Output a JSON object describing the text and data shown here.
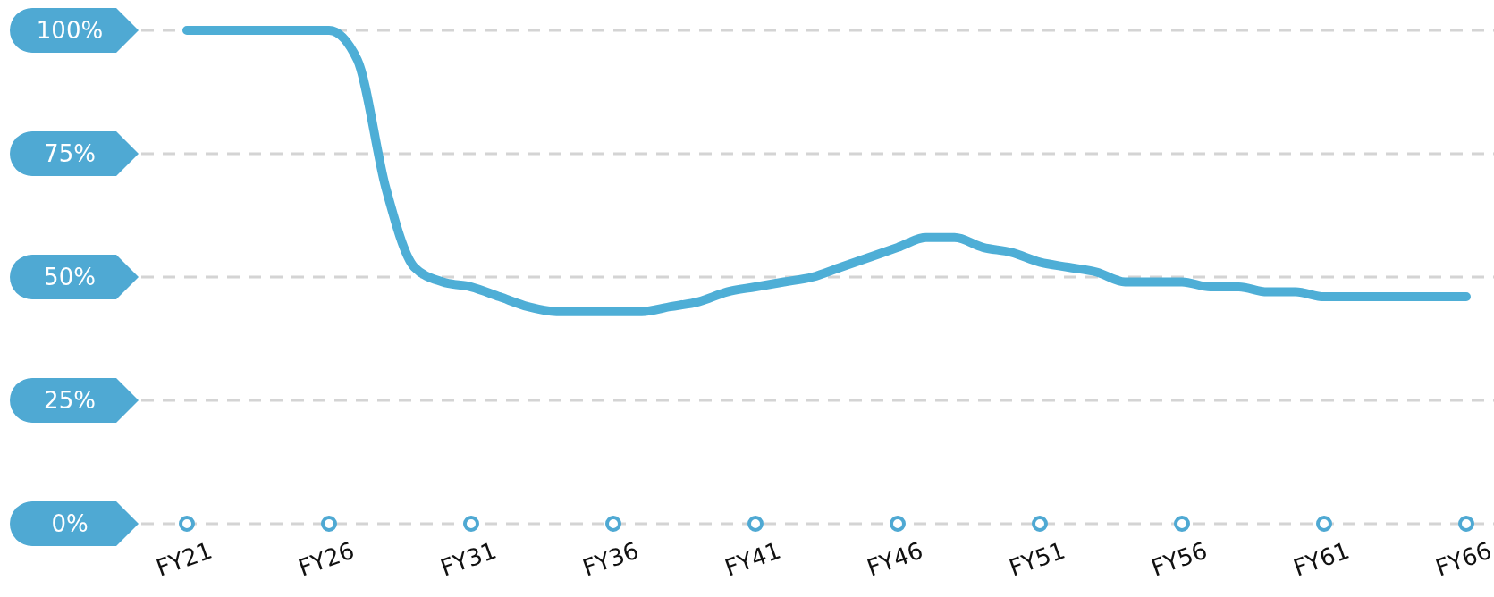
{
  "chart_data": {
    "type": "line",
    "categories": [
      "FY21",
      null,
      null,
      null,
      null,
      "FY26",
      null,
      null,
      null,
      null,
      "FY31",
      null,
      null,
      null,
      null,
      "FY36",
      null,
      null,
      null,
      null,
      "FY41",
      null,
      null,
      null,
      null,
      "FY46",
      null,
      null,
      null,
      null,
      "FY51",
      null,
      null,
      null,
      null,
      "FY56",
      null,
      null,
      null,
      null,
      "FY61",
      null,
      null,
      null,
      null,
      "FY66"
    ],
    "series": [
      {
        "color": "#4eaed6",
        "values": [
          100,
          100,
          100,
          100,
          100,
          100,
          94,
          68,
          52,
          49,
          48,
          46,
          44,
          43,
          43,
          43,
          43,
          44,
          45,
          47,
          48,
          49,
          50,
          52,
          54,
          56,
          58,
          58,
          56,
          55,
          53,
          52,
          51,
          49,
          49,
          49,
          48,
          48,
          47,
          47,
          46,
          46,
          46,
          46,
          46,
          46
        ]
      }
    ],
    "ylim": [
      0,
      100
    ],
    "yticks": [
      {
        "value": 0,
        "label": "0%"
      },
      {
        "value": 25,
        "label": "25%"
      },
      {
        "value": 50,
        "label": "50%"
      },
      {
        "value": 75,
        "label": "75%"
      },
      {
        "value": 100,
        "label": "100%"
      }
    ],
    "grid": "y",
    "marker": "none",
    "line_style": "solid"
  }
}
